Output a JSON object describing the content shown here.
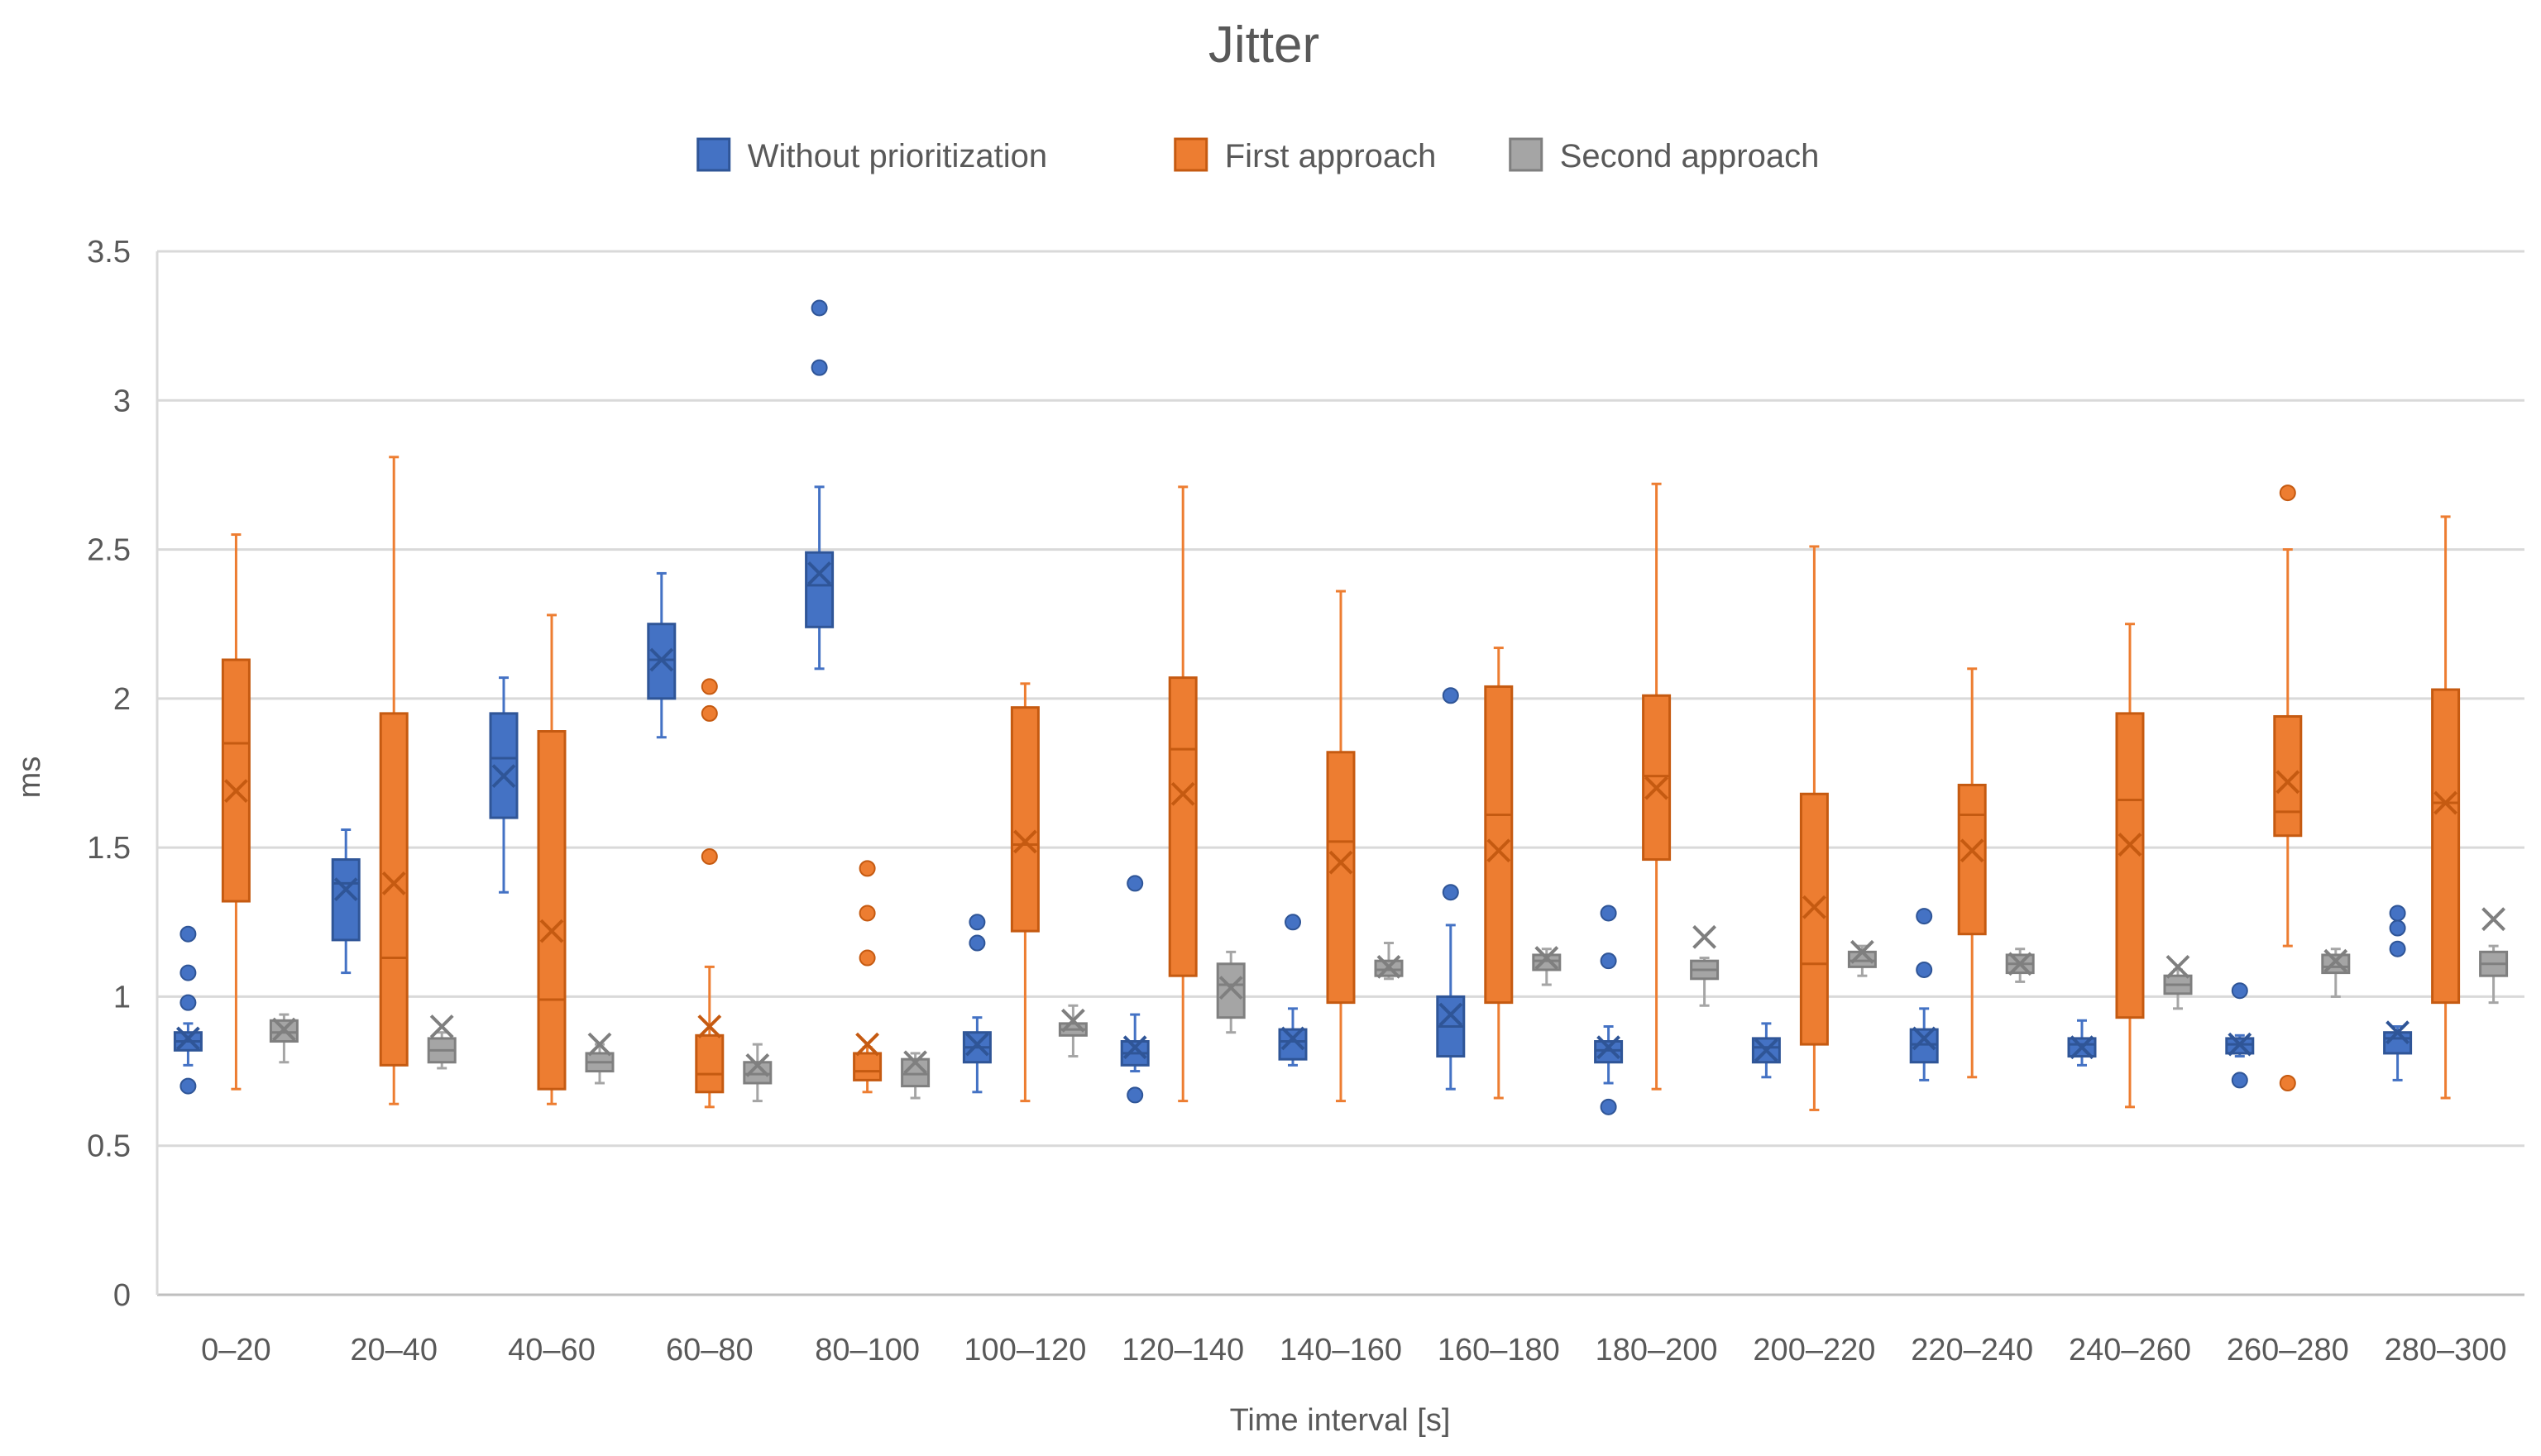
{
  "chart_data": {
    "type": "box",
    "title": "Jitter",
    "xlabel": "Time interval [s]",
    "ylabel": "ms",
    "ylim": [
      0,
      3.5
    ],
    "yticks": [
      0,
      0.5,
      1,
      1.5,
      2,
      2.5,
      3,
      3.5
    ],
    "ytick_labels": [
      "0",
      "0.5",
      "1",
      "1.5",
      "2",
      "2.5",
      "3",
      "3.5"
    ],
    "grid": true,
    "legend_position": "top",
    "categories": [
      "0–20",
      "20–40",
      "40–60",
      "60–80",
      "80–100",
      "100–120",
      "120–140",
      "140–160",
      "160–180",
      "180–200",
      "200–220",
      "220–240",
      "240–260",
      "260–280",
      "280–300"
    ],
    "series": [
      {
        "name": "Without prioritization",
        "color": "#4472C4",
        "edge": "#2F5597",
        "boxes": [
          {
            "whisker_low": 0.77,
            "q1": 0.82,
            "median": 0.85,
            "q3": 0.88,
            "whisker_high": 0.91,
            "mean": 0.86,
            "outliers": [
              1.21,
              1.08,
              0.98,
              0.7
            ]
          },
          {
            "whisker_low": 1.08,
            "q1": 1.19,
            "median": 1.38,
            "q3": 1.46,
            "whisker_high": 1.56,
            "mean": 1.36,
            "outliers": []
          },
          {
            "whisker_low": 1.35,
            "q1": 1.6,
            "median": 1.8,
            "q3": 1.95,
            "whisker_high": 2.07,
            "mean": 1.74,
            "outliers": []
          },
          {
            "whisker_low": 1.87,
            "q1": 2.0,
            "median": 2.13,
            "q3": 2.25,
            "whisker_high": 2.42,
            "mean": 2.13,
            "outliers": []
          },
          {
            "whisker_low": 2.1,
            "q1": 2.24,
            "median": 2.38,
            "q3": 2.49,
            "whisker_high": 2.71,
            "mean": 2.42,
            "outliers": [
              3.31,
              3.11
            ]
          },
          {
            "whisker_low": 0.68,
            "q1": 0.78,
            "median": 0.83,
            "q3": 0.88,
            "whisker_high": 0.93,
            "mean": 0.84,
            "outliers": [
              1.25,
              1.18
            ]
          },
          {
            "whisker_low": 0.75,
            "q1": 0.77,
            "median": 0.81,
            "q3": 0.85,
            "whisker_high": 0.94,
            "mean": 0.83,
            "outliers": [
              1.38,
              0.67
            ]
          },
          {
            "whisker_low": 0.77,
            "q1": 0.79,
            "median": 0.85,
            "q3": 0.89,
            "whisker_high": 0.96,
            "mean": 0.86,
            "outliers": [
              1.25
            ]
          },
          {
            "whisker_low": 0.69,
            "q1": 0.8,
            "median": 0.9,
            "q3": 1.0,
            "whisker_high": 1.24,
            "mean": 0.94,
            "outliers": [
              2.01,
              1.35
            ]
          },
          {
            "whisker_low": 0.71,
            "q1": 0.78,
            "median": 0.82,
            "q3": 0.85,
            "whisker_high": 0.9,
            "mean": 0.83,
            "outliers": [
              1.28,
              1.12,
              0.63
            ]
          },
          {
            "whisker_low": 0.73,
            "q1": 0.78,
            "median": 0.83,
            "q3": 0.86,
            "whisker_high": 0.91,
            "mean": 0.82,
            "outliers": []
          },
          {
            "whisker_low": 0.72,
            "q1": 0.78,
            "median": 0.84,
            "q3": 0.89,
            "whisker_high": 0.96,
            "mean": 0.86,
            "outliers": [
              1.27,
              1.09
            ]
          },
          {
            "whisker_low": 0.77,
            "q1": 0.8,
            "median": 0.84,
            "q3": 0.86,
            "whisker_high": 0.92,
            "mean": 0.83,
            "outliers": []
          },
          {
            "whisker_low": 0.8,
            "q1": 0.81,
            "median": 0.84,
            "q3": 0.86,
            "whisker_high": 0.87,
            "mean": 0.84,
            "outliers": [
              1.02,
              0.72
            ]
          },
          {
            "whisker_low": 0.72,
            "q1": 0.81,
            "median": 0.86,
            "q3": 0.88,
            "whisker_high": 0.9,
            "mean": 0.88,
            "outliers": [
              1.28,
              1.23,
              1.16
            ]
          }
        ]
      },
      {
        "name": "First approach",
        "color": "#ED7D31",
        "edge": "#C55A11",
        "boxes": [
          {
            "whisker_low": 0.69,
            "q1": 1.32,
            "median": 1.85,
            "q3": 2.13,
            "whisker_high": 2.55,
            "mean": 1.69,
            "outliers": []
          },
          {
            "whisker_low": 0.64,
            "q1": 0.77,
            "median": 1.13,
            "q3": 1.95,
            "whisker_high": 2.81,
            "mean": 1.38,
            "outliers": []
          },
          {
            "whisker_low": 0.64,
            "q1": 0.69,
            "median": 0.99,
            "q3": 1.89,
            "whisker_high": 2.28,
            "mean": 1.22,
            "outliers": []
          },
          {
            "whisker_low": 0.63,
            "q1": 0.68,
            "median": 0.74,
            "q3": 0.87,
            "whisker_high": 1.1,
            "mean": 0.9,
            "outliers": [
              2.04,
              1.95,
              1.47
            ]
          },
          {
            "whisker_low": 0.68,
            "q1": 0.72,
            "median": 0.75,
            "q3": 0.81,
            "whisker_high": 0.83,
            "mean": 0.84,
            "outliers": [
              1.43,
              1.28,
              1.13
            ]
          },
          {
            "whisker_low": 0.65,
            "q1": 1.22,
            "median": 1.51,
            "q3": 1.97,
            "whisker_high": 2.05,
            "mean": 1.52,
            "outliers": []
          },
          {
            "whisker_low": 0.65,
            "q1": 1.07,
            "median": 1.83,
            "q3": 2.07,
            "whisker_high": 2.71,
            "mean": 1.68,
            "outliers": []
          },
          {
            "whisker_low": 0.65,
            "q1": 0.98,
            "median": 1.52,
            "q3": 1.82,
            "whisker_high": 2.36,
            "mean": 1.45,
            "outliers": []
          },
          {
            "whisker_low": 0.66,
            "q1": 0.98,
            "median": 1.61,
            "q3": 2.04,
            "whisker_high": 2.17,
            "mean": 1.49,
            "outliers": []
          },
          {
            "whisker_low": 0.69,
            "q1": 1.46,
            "median": 1.74,
            "q3": 2.01,
            "whisker_high": 2.72,
            "mean": 1.7,
            "outliers": []
          },
          {
            "whisker_low": 0.62,
            "q1": 0.84,
            "median": 1.11,
            "q3": 1.68,
            "whisker_high": 2.51,
            "mean": 1.3,
            "outliers": []
          },
          {
            "whisker_low": 0.73,
            "q1": 1.21,
            "median": 1.61,
            "q3": 1.71,
            "whisker_high": 2.1,
            "mean": 1.49,
            "outliers": []
          },
          {
            "whisker_low": 0.63,
            "q1": 0.93,
            "median": 1.66,
            "q3": 1.95,
            "whisker_high": 2.25,
            "mean": 1.51,
            "outliers": []
          },
          {
            "whisker_low": 1.17,
            "q1": 1.54,
            "median": 1.62,
            "q3": 1.94,
            "whisker_high": 2.5,
            "mean": 1.72,
            "outliers": [
              2.69,
              0.71
            ]
          },
          {
            "whisker_low": 0.66,
            "q1": 0.98,
            "median": 1.65,
            "q3": 2.03,
            "whisker_high": 2.61,
            "mean": 1.65,
            "outliers": []
          }
        ]
      },
      {
        "name": "Second approach",
        "color": "#A5A5A5",
        "edge": "#7F7F7F",
        "boxes": [
          {
            "whisker_low": 0.78,
            "q1": 0.85,
            "median": 0.88,
            "q3": 0.92,
            "whisker_high": 0.94,
            "mean": 0.89,
            "outliers": []
          },
          {
            "whisker_low": 0.76,
            "q1": 0.78,
            "median": 0.82,
            "q3": 0.86,
            "whisker_high": 0.88,
            "mean": 0.9,
            "outliers": []
          },
          {
            "whisker_low": 0.71,
            "q1": 0.75,
            "median": 0.78,
            "q3": 0.81,
            "whisker_high": 0.84,
            "mean": 0.84,
            "outliers": []
          },
          {
            "whisker_low": 0.65,
            "q1": 0.71,
            "median": 0.74,
            "q3": 0.78,
            "whisker_high": 0.84,
            "mean": 0.77,
            "outliers": []
          },
          {
            "whisker_low": 0.66,
            "q1": 0.7,
            "median": 0.74,
            "q3": 0.79,
            "whisker_high": 0.81,
            "mean": 0.78,
            "outliers": []
          },
          {
            "whisker_low": 0.8,
            "q1": 0.87,
            "median": 0.89,
            "q3": 0.91,
            "whisker_high": 0.97,
            "mean": 0.92,
            "outliers": []
          },
          {
            "whisker_low": 0.88,
            "q1": 0.93,
            "median": 1.04,
            "q3": 1.11,
            "whisker_high": 1.15,
            "mean": 1.03,
            "outliers": []
          },
          {
            "whisker_low": 1.06,
            "q1": 1.07,
            "median": 1.09,
            "q3": 1.12,
            "whisker_high": 1.18,
            "mean": 1.1,
            "outliers": []
          },
          {
            "whisker_low": 1.04,
            "q1": 1.09,
            "median": 1.12,
            "q3": 1.14,
            "whisker_high": 1.16,
            "mean": 1.13,
            "outliers": []
          },
          {
            "whisker_low": 0.97,
            "q1": 1.06,
            "median": 1.09,
            "q3": 1.12,
            "whisker_high": 1.13,
            "mean": 1.2,
            "outliers": []
          },
          {
            "whisker_low": 1.07,
            "q1": 1.1,
            "median": 1.12,
            "q3": 1.15,
            "whisker_high": 1.17,
            "mean": 1.15,
            "outliers": []
          },
          {
            "whisker_low": 1.05,
            "q1": 1.08,
            "median": 1.11,
            "q3": 1.14,
            "whisker_high": 1.16,
            "mean": 1.11,
            "outliers": []
          },
          {
            "whisker_low": 0.96,
            "q1": 1.01,
            "median": 1.04,
            "q3": 1.07,
            "whisker_high": 1.09,
            "mean": 1.1,
            "outliers": []
          },
          {
            "whisker_low": 1.0,
            "q1": 1.08,
            "median": 1.1,
            "q3": 1.14,
            "whisker_high": 1.16,
            "mean": 1.12,
            "outliers": []
          },
          {
            "whisker_low": 0.98,
            "q1": 1.07,
            "median": 1.11,
            "q3": 1.15,
            "whisker_high": 1.17,
            "mean": 1.26,
            "outliers": []
          }
        ]
      }
    ]
  }
}
